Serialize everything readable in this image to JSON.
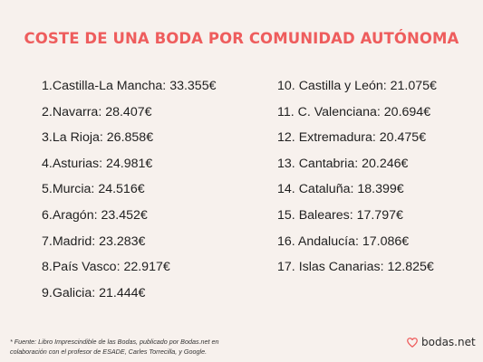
{
  "title": "COSTE DE UNA BODA POR COMUNIDAD AUTÓNOMA",
  "list_left": [
    {
      "num": "1.",
      "name": "Castilla-La Mancha",
      "cost": "33.355€"
    },
    {
      "num": "2.",
      "name": "Navarra",
      "cost": "28.407€"
    },
    {
      "num": "3.",
      "name": "La Rioja",
      "cost": "26.858€"
    },
    {
      "num": "4.",
      "name": "Asturias",
      "cost": "24.981€"
    },
    {
      "num": "5.",
      "name": "Murcia",
      "cost": "24.516€"
    },
    {
      "num": "6.",
      "name": "Aragón",
      "cost": "23.452€"
    },
    {
      "num": "7.",
      "name": "Madrid",
      "cost": "23.283€"
    },
    {
      "num": "8.",
      "name": "País Vasco",
      "cost": "22.917€"
    },
    {
      "num": "9.",
      "name": "Galicia",
      "cost": "21.444€"
    }
  ],
  "list_right": [
    {
      "num": "10.",
      "name": "Castilla y León",
      "cost": "21.075€"
    },
    {
      "num": "11.",
      "name": "C. Valenciana",
      "cost": "20.694€"
    },
    {
      "num": "12.",
      "name": "Extremadura",
      "cost": "20.475€"
    },
    {
      "num": "13.",
      "name": "Cantabria",
      "cost": "20.246€"
    },
    {
      "num": "14.",
      "name": "Cataluña",
      "cost": "18.399€"
    },
    {
      "num": "15.",
      "name": "Baleares",
      "cost": "17.797€"
    },
    {
      "num": "16.",
      "name": "Andalucía",
      "cost": "17.086€"
    },
    {
      "num": "17.",
      "name": "Islas Canarias",
      "cost": "12.825€"
    }
  ],
  "footnote": {
    "line1": "* Fuente: Libro Imprescindible de las Bodas, publicado por Bodas.net en",
    "line2": "colaboración con el profesor de ESADE, Carles Torrecilla, y Google."
  },
  "logo": {
    "icon": "heart-icon",
    "text": "bodas.net"
  },
  "colors": {
    "background": "#f7f1ed",
    "title": "#ee5d5d",
    "text": "#1f1f1f",
    "logo_heart": "#ee5d5d"
  }
}
